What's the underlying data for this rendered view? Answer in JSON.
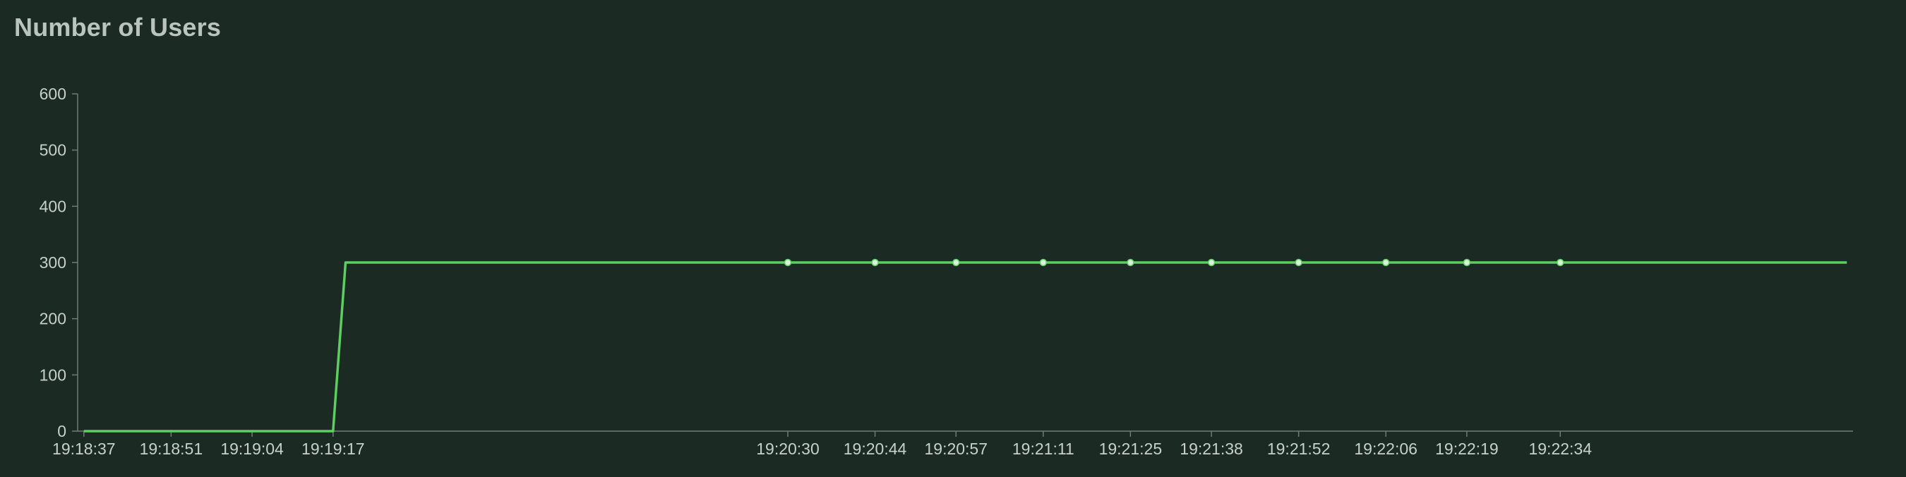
{
  "chart": {
    "title": "Number of Users"
  },
  "colors": {
    "background": "#1b2a23",
    "series": "#5ccf60",
    "axis": "#6f7c75",
    "text": "#c7d0ca"
  },
  "chart_data": {
    "type": "line",
    "title": "Number of Users",
    "xlabel": "",
    "ylabel": "",
    "ylim": [
      0,
      600
    ],
    "yticks": [
      0,
      100,
      200,
      300,
      400,
      500,
      600
    ],
    "x_type": "time",
    "xlim": [
      "19:18:36",
      "19:23:21"
    ],
    "xticks": [
      "19:18:37",
      "19:18:51",
      "19:19:04",
      "19:19:17",
      "19:20:30",
      "19:20:44",
      "19:20:57",
      "19:21:11",
      "19:21:25",
      "19:21:38",
      "19:21:52",
      "19:22:06",
      "19:22:19",
      "19:22:34"
    ],
    "grid": false,
    "legend": "none",
    "series": [
      {
        "x": [
          "19:18:37",
          "19:19:17",
          "19:19:19",
          "19:20:30",
          "19:20:44",
          "19:20:57",
          "19:21:11",
          "19:21:25",
          "19:21:38",
          "19:21:52",
          "19:22:06",
          "19:22:19",
          "19:22:34",
          "19:23:20"
        ],
        "values": [
          0,
          0,
          300,
          300,
          300,
          300,
          300,
          300,
          300,
          300,
          300,
          300,
          300,
          300
        ],
        "markers": [
          false,
          false,
          false,
          true,
          true,
          true,
          true,
          true,
          true,
          true,
          true,
          true,
          true,
          false
        ]
      }
    ]
  }
}
